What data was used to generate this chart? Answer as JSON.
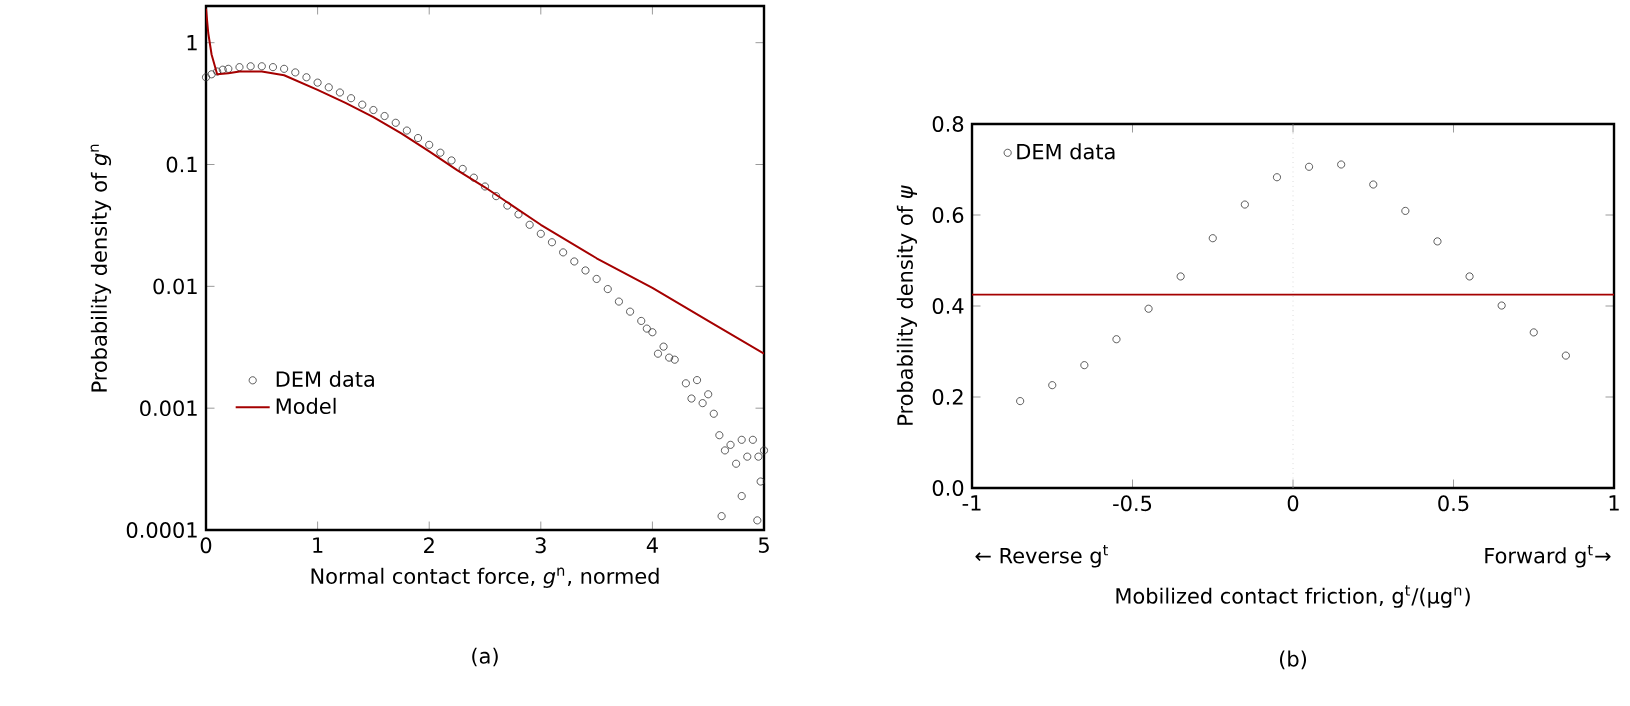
{
  "chart_data": [
    {
      "type": "scatter",
      "xlabel": "Normal contact force, *g*$^{n}$, normed",
      "ylabel": "Probability density of *g*$^{n}$",
      "xlim": [
        0,
        5
      ],
      "ylim": [
        0.0001,
        2
      ],
      "xticks": [
        0,
        1,
        2,
        3,
        4,
        5
      ],
      "yticks": [
        0.0001,
        0.001,
        0.01,
        0.1,
        1
      ],
      "log": "y",
      "legend": "bottom left",
      "annotations": [
        "(a)"
      ],
      "series": [
        {
          "name": "DEM data",
          "marker": "circle",
          "color": "#333333",
          "x": [
            0,
            0.05,
            0.1,
            0.15,
            0.2,
            0.3,
            0.4,
            0.5,
            0.6,
            0.7,
            0.8,
            0.9,
            1.0,
            1.1,
            1.2,
            1.3,
            1.4,
            1.5,
            1.6,
            1.7,
            1.8,
            1.9,
            2.0,
            2.1,
            2.2,
            2.3,
            2.4,
            2.5,
            2.6,
            2.7,
            2.8,
            2.9,
            3.0,
            3.1,
            3.2,
            3.3,
            3.4,
            3.5,
            3.6,
            3.7,
            3.8,
            3.9,
            3.95,
            4.0,
            4.05,
            4.1,
            4.15,
            4.2,
            4.3,
            4.35,
            4.4,
            4.45,
            4.5,
            4.55,
            4.6,
            4.65,
            4.7,
            4.75,
            4.8,
            4.85,
            4.9,
            4.95,
            4.62,
            4.8,
            4.94,
            4.97,
            5.0
          ],
          "values": [
            0.52,
            0.55,
            0.58,
            0.6,
            0.61,
            0.63,
            0.64,
            0.64,
            0.63,
            0.61,
            0.57,
            0.52,
            0.47,
            0.43,
            0.39,
            0.35,
            0.31,
            0.28,
            0.25,
            0.22,
            0.19,
            0.165,
            0.145,
            0.125,
            0.108,
            0.092,
            0.078,
            0.066,
            0.055,
            0.046,
            0.039,
            0.032,
            0.027,
            0.023,
            0.019,
            0.016,
            0.0135,
            0.0115,
            0.0095,
            0.0075,
            0.0062,
            0.0052,
            0.0045,
            0.0042,
            0.0028,
            0.0032,
            0.0026,
            0.0025,
            0.0016,
            0.0012,
            0.0017,
            0.0011,
            0.0013,
            0.0009,
            0.0006,
            0.00045,
            0.0005,
            0.00035,
            0.00055,
            0.0004,
            0.00055,
            0.0004,
            0.00013,
            0.00019,
            0.00012,
            0.00025,
            0.00045
          ]
        },
        {
          "name": "Model",
          "type": "line",
          "color": "#a50000",
          "line_style": "solid",
          "x": [
            0,
            0.02,
            0.05,
            0.1,
            0.2,
            0.3,
            0.5,
            0.7,
            1,
            1.25,
            1.5,
            1.75,
            2,
            2.25,
            2.5,
            3,
            3.5,
            4,
            4.5,
            5
          ],
          "values": [
            1.9,
            1.2,
            0.8,
            0.55,
            0.56,
            0.58,
            0.58,
            0.54,
            0.41,
            0.32,
            0.245,
            0.18,
            0.128,
            0.09,
            0.065,
            0.032,
            0.017,
            0.0097,
            0.0052,
            0.0028
          ]
        }
      ]
    },
    {
      "type": "scatter",
      "xlabel": "Mobilized contact friction, g$^{t}$/(μg$^{n}$)",
      "ylabel": "Probability density of *ψ*",
      "xlim": [
        -1,
        1
      ],
      "ylim": [
        0,
        0.8
      ],
      "xticks": [
        -1,
        -0.5,
        0,
        0.5,
        1
      ],
      "yticks": [
        {
          "value": 0,
          "label": "0.0"
        },
        0.2,
        0.4,
        0.6,
        0.8
      ],
      "legend": "top left",
      "annotations": [
        "← Reverse g$^{t}$",
        "Forward g$^{t}$→",
        "(b)"
      ],
      "ref_lines": [
        {
          "axis": "y",
          "value": 0.425,
          "color": "#a50000",
          "line_style": "solid"
        },
        {
          "axis": "x",
          "value": 0,
          "color": "#c8c8c8",
          "line_style": "dotted"
        }
      ],
      "series": [
        {
          "name": "DEM data",
          "marker": "circle",
          "color": "#333333",
          "x": [
            -0.85,
            -0.75,
            -0.65,
            -0.55,
            -0.45,
            -0.35,
            -0.25,
            -0.15,
            -0.05,
            0.05,
            0.15,
            0.25,
            0.35,
            0.45,
            0.55,
            0.65,
            0.75,
            0.85
          ],
          "values": [
            0.191,
            0.226,
            0.27,
            0.327,
            0.394,
            0.465,
            0.549,
            0.623,
            0.683,
            0.706,
            0.711,
            0.667,
            0.609,
            0.542,
            0.465,
            0.401,
            0.342,
            0.291
          ]
        }
      ]
    }
  ]
}
